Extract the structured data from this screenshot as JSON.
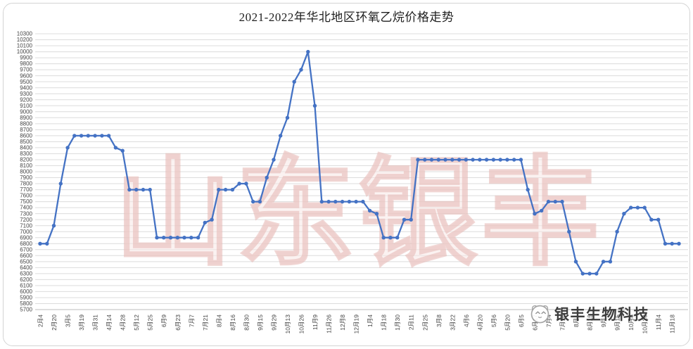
{
  "window": {
    "title": "2021-2022年华北地区环氧乙烷价格走势"
  },
  "watermark": {
    "text": "山东银丰"
  },
  "logo": {
    "text": "银丰生物科技",
    "mascot_icon": "sheep-mascot-icon"
  },
  "chart_data": {
    "type": "line",
    "title": "2021-2022年华北地区环氧乙烷价格走势",
    "xlabel": "",
    "ylabel": "",
    "ylim": [
      5700,
      10300
    ],
    "y_tick_step": 100,
    "grid": true,
    "legend": false,
    "line_color": "#4472C4",
    "marker": "circle",
    "grid_color": "#DCDCDC",
    "axis_line_color": "#BDBDBD",
    "axis_text_color": "#454545",
    "points_per_label": 2,
    "x_labels": [
      "2月4",
      "2月20",
      "3月5",
      "3月19",
      "3月31",
      "4月14",
      "4月28",
      "5月12",
      "5月25",
      "6月9",
      "6月23",
      "7月7",
      "7月21",
      "8月4",
      "8月16",
      "8月30",
      "9月15",
      "9月29",
      "10月13",
      "10月26",
      "11月9",
      "11月26",
      "12月8",
      "12月19",
      "1月4",
      "1月18",
      "1月30",
      "2月11",
      "2月25",
      "3月8",
      "3月22",
      "4月6",
      "4月20",
      "5月6",
      "5月20",
      "6月5",
      "6月17",
      "7月4",
      "7月18",
      "8月1",
      "8月15",
      "9月1",
      "9月15",
      "10月8",
      "10月20",
      "11月4",
      "11月18"
    ],
    "values": [
      6800,
      6800,
      7100,
      7800,
      8400,
      8600,
      8600,
      8600,
      8600,
      8600,
      8600,
      8400,
      8350,
      7700,
      7700,
      7700,
      7700,
      6900,
      6900,
      6900,
      6900,
      6900,
      6900,
      6900,
      7150,
      7200,
      7700,
      7700,
      7700,
      7800,
      7800,
      7500,
      7500,
      7900,
      8200,
      8600,
      8900,
      9500,
      9700,
      10000,
      9100,
      7500,
      7500,
      7500,
      7500,
      7500,
      7500,
      7500,
      7350,
      7300,
      6900,
      6900,
      6900,
      7200,
      7200,
      8200,
      8200,
      8200,
      8200,
      8200,
      8200,
      8200,
      8200,
      8200,
      8200,
      8200,
      8200,
      8200,
      8200,
      8200,
      8200,
      7700,
      7300,
      7350,
      7500,
      7500,
      7500,
      7000,
      6500,
      6300,
      6300,
      6300,
      6500,
      6500,
      7000,
      7300,
      7400,
      7400,
      7400,
      7200,
      7200,
      6800,
      6800,
      6800
    ]
  }
}
